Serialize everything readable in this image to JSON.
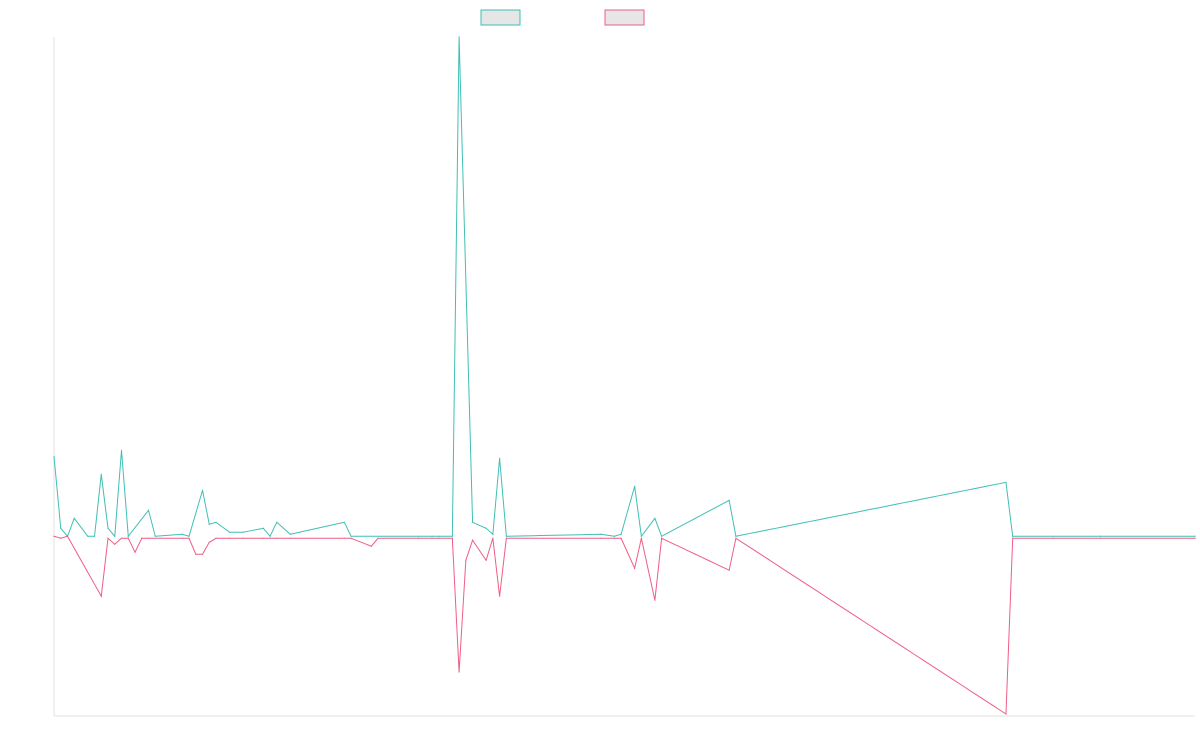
{
  "chart_data": {
    "type": "line",
    "title": "",
    "xlabel": "",
    "ylabel": "",
    "grid": false,
    "legend_placement": "top-center",
    "x_count": 170,
    "ylim": [
      -180,
      500
    ],
    "series": [
      {
        "color": "#3fbfb5",
        "fill": "#e6e6e6",
        "sparse_values": [
          [
            0,
            80
          ],
          [
            1,
            8
          ],
          [
            2,
            0
          ],
          [
            3,
            18
          ],
          [
            5,
            0
          ],
          [
            6,
            0
          ],
          [
            7,
            62
          ],
          [
            8,
            8
          ],
          [
            9,
            0
          ],
          [
            10,
            86
          ],
          [
            11,
            0
          ],
          [
            14,
            26
          ],
          [
            15,
            0
          ],
          [
            19,
            2
          ],
          [
            20,
            0
          ],
          [
            22,
            46
          ],
          [
            23,
            12
          ],
          [
            24,
            14
          ],
          [
            26,
            4
          ],
          [
            28,
            4
          ],
          [
            31,
            8
          ],
          [
            32,
            0
          ],
          [
            33,
            14
          ],
          [
            35,
            2
          ],
          [
            43,
            14
          ],
          [
            44,
            0
          ],
          [
            54,
            0
          ],
          [
            56,
            0
          ],
          [
            57,
            0
          ],
          [
            59,
            0
          ],
          [
            60,
            500
          ],
          [
            62,
            14
          ],
          [
            64,
            8
          ],
          [
            65,
            2
          ],
          [
            66,
            78
          ],
          [
            67,
            0
          ],
          [
            81,
            2
          ],
          [
            83,
            0
          ],
          [
            84,
            2
          ],
          [
            86,
            50
          ],
          [
            87,
            0
          ],
          [
            89,
            18
          ],
          [
            90,
            0
          ],
          [
            100,
            36
          ],
          [
            101,
            0
          ],
          [
            141,
            54
          ],
          [
            142,
            0
          ],
          [
            148,
            0
          ],
          [
            155,
            0
          ],
          [
            169,
            0
          ]
        ]
      },
      {
        "color": "#ef5d86",
        "fill": "#e6e6e6",
        "sparse_values": [
          [
            0,
            0
          ],
          [
            1,
            -2
          ],
          [
            2,
            0
          ],
          [
            7,
            -60
          ],
          [
            8,
            -2
          ],
          [
            9,
            -8
          ],
          [
            10,
            -2
          ],
          [
            11,
            -2
          ],
          [
            12,
            -16
          ],
          [
            13,
            -2
          ],
          [
            14,
            -2
          ],
          [
            19,
            -2
          ],
          [
            20,
            -2
          ],
          [
            21,
            -18
          ],
          [
            22,
            -18
          ],
          [
            23,
            -6
          ],
          [
            24,
            -2
          ],
          [
            26,
            -2
          ],
          [
            28,
            -2
          ],
          [
            31,
            -2
          ],
          [
            32,
            -2
          ],
          [
            33,
            -2
          ],
          [
            35,
            -2
          ],
          [
            43,
            -2
          ],
          [
            44,
            -2
          ],
          [
            47,
            -10
          ],
          [
            48,
            -2
          ],
          [
            54,
            -2
          ],
          [
            56,
            -2
          ],
          [
            57,
            -2
          ],
          [
            59,
            -2
          ],
          [
            60,
            -136
          ],
          [
            61,
            -24
          ],
          [
            62,
            -4
          ],
          [
            64,
            -24
          ],
          [
            65,
            -2
          ],
          [
            66,
            -60
          ],
          [
            67,
            -2
          ],
          [
            81,
            -2
          ],
          [
            83,
            -2
          ],
          [
            84,
            -2
          ],
          [
            86,
            -32
          ],
          [
            87,
            -2
          ],
          [
            89,
            -64
          ],
          [
            90,
            -2
          ],
          [
            100,
            -34
          ],
          [
            101,
            -2
          ],
          [
            141,
            -178
          ],
          [
            142,
            -2
          ],
          [
            148,
            -2
          ],
          [
            155,
            -2
          ],
          [
            169,
            -2
          ]
        ]
      }
    ]
  }
}
